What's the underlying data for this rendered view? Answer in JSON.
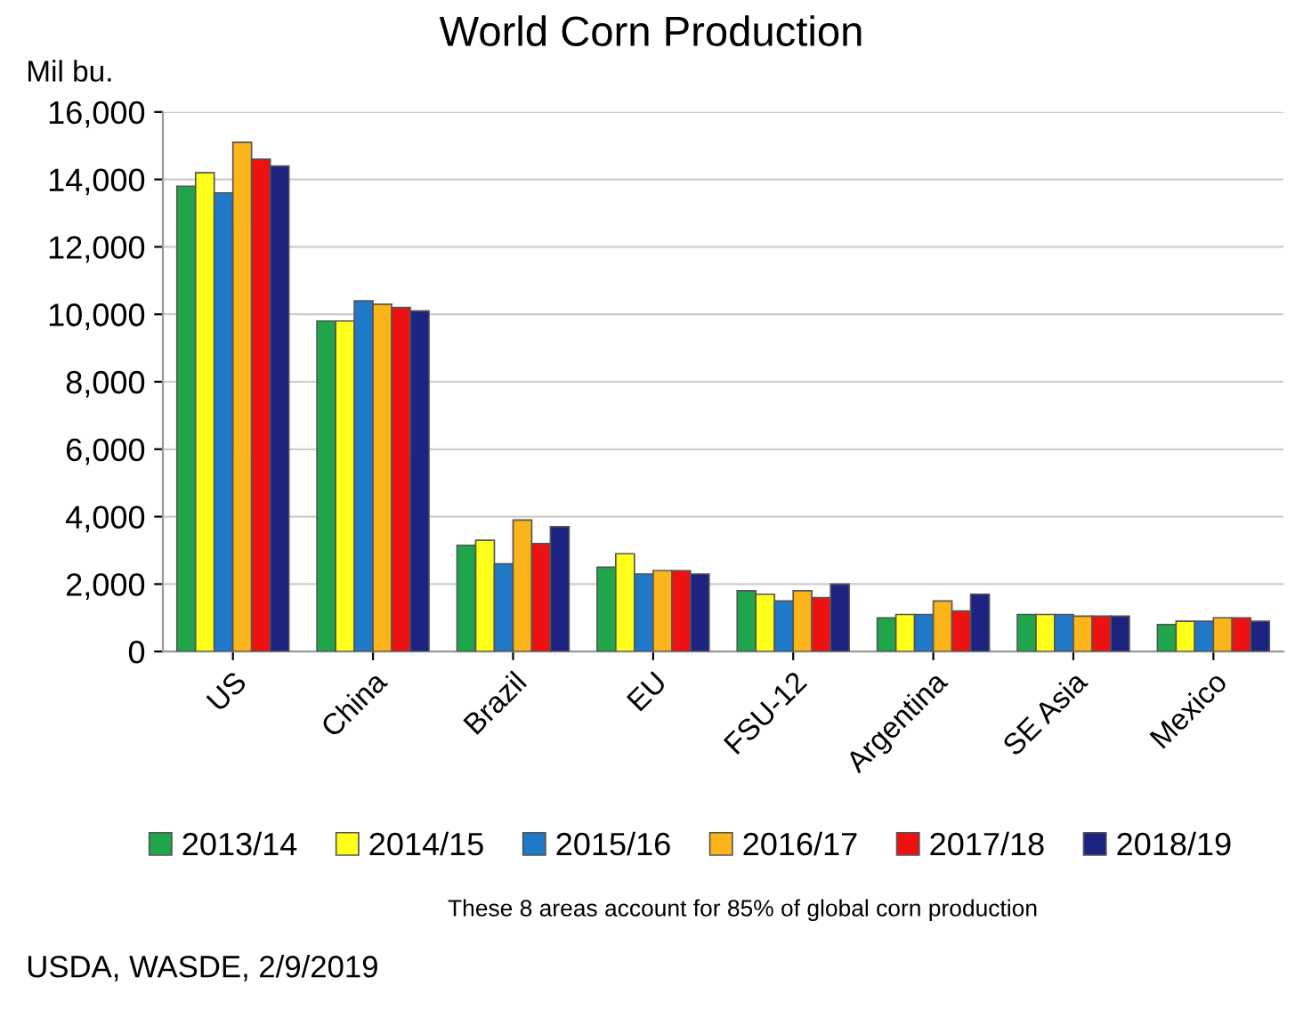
{
  "chart_data": {
    "type": "bar",
    "title": "World Corn Production",
    "ylabel": "Mil bu.",
    "categories": [
      "US",
      "China",
      "Brazil",
      "EU",
      "FSU-12",
      "Argentina",
      "SE Asia",
      "Mexico"
    ],
    "series": [
      {
        "name": "2013/14",
        "color": "#1fa64a",
        "values": [
          13800,
          9800,
          3150,
          2500,
          1800,
          1000,
          1100,
          800
        ]
      },
      {
        "name": "2014/15",
        "color": "#ffff1a",
        "values": [
          14200,
          9800,
          3300,
          2900,
          1700,
          1100,
          1100,
          900
        ]
      },
      {
        "name": "2015/16",
        "color": "#1f78c8",
        "values": [
          13600,
          10400,
          2600,
          2300,
          1500,
          1100,
          1100,
          900
        ]
      },
      {
        "name": "2016/17",
        "color": "#fbb41a",
        "values": [
          15100,
          10300,
          3900,
          2400,
          1800,
          1500,
          1050,
          1000
        ]
      },
      {
        "name": "2017/18",
        "color": "#ee1111",
        "values": [
          14600,
          10200,
          3200,
          2400,
          1600,
          1200,
          1050,
          1000
        ]
      },
      {
        "name": "2018/19",
        "color": "#1c2380",
        "values": [
          14400,
          10100,
          3700,
          2300,
          2000,
          1700,
          1050,
          900
        ]
      }
    ],
    "ylim": [
      0,
      16000
    ],
    "yticks": [
      {
        "value": 0,
        "label": "0"
      },
      {
        "value": 2000,
        "label": "2,000"
      },
      {
        "value": 4000,
        "label": "4,000"
      },
      {
        "value": 6000,
        "label": "6,000"
      },
      {
        "value": 8000,
        "label": "8,000"
      },
      {
        "value": 10000,
        "label": "10,000"
      },
      {
        "value": 12000,
        "label": "12,000"
      },
      {
        "value": 14000,
        "label": "14,000"
      },
      {
        "value": 16000,
        "label": "16,000"
      }
    ],
    "grid": "y",
    "legend": "bottom",
    "annotations": [
      "These 8 areas account for 85% of global corn production",
      "USDA, WASDE, 2/9/2019"
    ]
  }
}
